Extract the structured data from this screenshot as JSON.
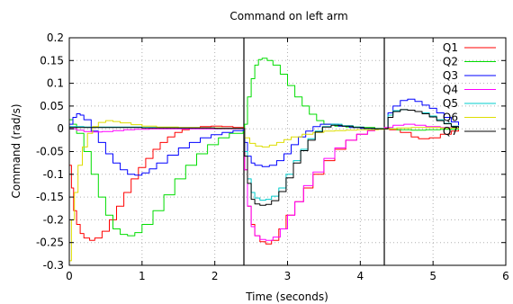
{
  "chart_data": {
    "type": "line",
    "title": "Command on left arm",
    "xlabel": "Time (seconds)",
    "ylabel": "Command (rad/s)",
    "xlim": [
      0,
      6
    ],
    "ylim": [
      -0.3,
      0.2
    ],
    "xticks": [
      0,
      1,
      2,
      3,
      4,
      5,
      6
    ],
    "yticks": [
      -0.3,
      -0.25,
      -0.2,
      -0.15,
      -0.1,
      -0.05,
      0,
      0.05,
      0.1,
      0.15,
      0.2
    ],
    "ytick_labels": [
      "-0.3",
      "-0.25",
      "-0.2",
      "-0.15",
      "-0.1",
      "-0.05",
      "0",
      "0.05",
      "0.1",
      "0.15",
      "0.2"
    ],
    "grid": true,
    "legend_position": "top-right",
    "vertical_markers": [
      2.4,
      4.33
    ],
    "series": [
      {
        "name": "Q1",
        "color": "#ff0000",
        "points": [
          [
            0,
            -0.08
          ],
          [
            0.03,
            -0.13
          ],
          [
            0.06,
            -0.18
          ],
          [
            0.1,
            -0.21
          ],
          [
            0.15,
            -0.23
          ],
          [
            0.2,
            -0.24
          ],
          [
            0.28,
            -0.245
          ],
          [
            0.35,
            -0.24
          ],
          [
            0.45,
            -0.225
          ],
          [
            0.55,
            -0.2
          ],
          [
            0.65,
            -0.17
          ],
          [
            0.75,
            -0.14
          ],
          [
            0.85,
            -0.11
          ],
          [
            0.95,
            -0.085
          ],
          [
            1.05,
            -0.065
          ],
          [
            1.15,
            -0.045
          ],
          [
            1.25,
            -0.03
          ],
          [
            1.35,
            -0.018
          ],
          [
            1.45,
            -0.008
          ],
          [
            1.55,
            -0.002
          ],
          [
            1.65,
            0.002
          ],
          [
            1.8,
            0.005
          ],
          [
            1.95,
            0.006
          ],
          [
            2.1,
            0.005
          ],
          [
            2.25,
            0.003
          ],
          [
            2.39,
            0.002
          ],
          [
            2.41,
            -0.09
          ],
          [
            2.45,
            -0.17
          ],
          [
            2.5,
            -0.21
          ],
          [
            2.55,
            -0.235
          ],
          [
            2.62,
            -0.248
          ],
          [
            2.7,
            -0.253
          ],
          [
            2.78,
            -0.245
          ],
          [
            2.88,
            -0.22
          ],
          [
            2.98,
            -0.19
          ],
          [
            3.1,
            -0.16
          ],
          [
            3.22,
            -0.13
          ],
          [
            3.35,
            -0.1
          ],
          [
            3.5,
            -0.07
          ],
          [
            3.65,
            -0.045
          ],
          [
            3.8,
            -0.025
          ],
          [
            3.95,
            -0.012
          ],
          [
            4.1,
            -0.004
          ],
          [
            4.2,
            0
          ],
          [
            4.33,
            0.002
          ],
          [
            4.4,
            -0.002
          ],
          [
            4.55,
            -0.008
          ],
          [
            4.7,
            -0.018
          ],
          [
            4.8,
            -0.022
          ],
          [
            4.95,
            -0.02
          ],
          [
            5.1,
            -0.012
          ],
          [
            5.25,
            -0.005
          ],
          [
            5.35,
            -0.002
          ]
        ]
      },
      {
        "name": "Q2",
        "color": "#00dd00",
        "points": [
          [
            0,
            0.02
          ],
          [
            0.05,
            0.01
          ],
          [
            0.1,
            -0.01
          ],
          [
            0.2,
            -0.05
          ],
          [
            0.3,
            -0.1
          ],
          [
            0.4,
            -0.15
          ],
          [
            0.5,
            -0.19
          ],
          [
            0.6,
            -0.22
          ],
          [
            0.7,
            -0.232
          ],
          [
            0.8,
            -0.235
          ],
          [
            0.9,
            -0.228
          ],
          [
            1.0,
            -0.21
          ],
          [
            1.15,
            -0.18
          ],
          [
            1.3,
            -0.145
          ],
          [
            1.45,
            -0.11
          ],
          [
            1.6,
            -0.08
          ],
          [
            1.75,
            -0.055
          ],
          [
            1.9,
            -0.035
          ],
          [
            2.05,
            -0.02
          ],
          [
            2.2,
            -0.01
          ],
          [
            2.39,
            -0.005
          ],
          [
            2.41,
            0.01
          ],
          [
            2.45,
            0.07
          ],
          [
            2.5,
            0.11
          ],
          [
            2.55,
            0.14
          ],
          [
            2.6,
            0.152
          ],
          [
            2.65,
            0.155
          ],
          [
            2.72,
            0.15
          ],
          [
            2.8,
            0.14
          ],
          [
            2.9,
            0.12
          ],
          [
            3.0,
            0.095
          ],
          [
            3.1,
            0.07
          ],
          [
            3.2,
            0.05
          ],
          [
            3.3,
            0.032
          ],
          [
            3.4,
            0.018
          ],
          [
            3.5,
            0.01
          ],
          [
            3.65,
            0.006
          ],
          [
            3.8,
            0.004
          ],
          [
            4.0,
            0.003
          ],
          [
            4.2,
            0.001
          ],
          [
            4.33,
            0
          ],
          [
            4.5,
            -0.002
          ],
          [
            4.7,
            -0.003
          ],
          [
            4.9,
            -0.002
          ],
          [
            5.1,
            -0.001
          ],
          [
            5.35,
            0
          ]
        ]
      },
      {
        "name": "Q3",
        "color": "#0000ff",
        "points": [
          [
            0,
            0.01
          ],
          [
            0.05,
            0.025
          ],
          [
            0.1,
            0.033
          ],
          [
            0.15,
            0.03
          ],
          [
            0.2,
            0.02
          ],
          [
            0.3,
            -0.005
          ],
          [
            0.4,
            -0.03
          ],
          [
            0.5,
            -0.055
          ],
          [
            0.6,
            -0.075
          ],
          [
            0.7,
            -0.09
          ],
          [
            0.8,
            -0.1
          ],
          [
            0.9,
            -0.102
          ],
          [
            1.0,
            -0.097
          ],
          [
            1.1,
            -0.088
          ],
          [
            1.2,
            -0.075
          ],
          [
            1.35,
            -0.058
          ],
          [
            1.5,
            -0.042
          ],
          [
            1.65,
            -0.03
          ],
          [
            1.8,
            -0.02
          ],
          [
            1.95,
            -0.013
          ],
          [
            2.1,
            -0.008
          ],
          [
            2.25,
            -0.004
          ],
          [
            2.39,
            -0.002
          ],
          [
            2.41,
            -0.03
          ],
          [
            2.45,
            -0.06
          ],
          [
            2.5,
            -0.075
          ],
          [
            2.55,
            -0.08
          ],
          [
            2.65,
            -0.083
          ],
          [
            2.75,
            -0.08
          ],
          [
            2.85,
            -0.07
          ],
          [
            2.95,
            -0.055
          ],
          [
            3.05,
            -0.035
          ],
          [
            3.15,
            -0.018
          ],
          [
            3.25,
            -0.005
          ],
          [
            3.35,
            0.005
          ],
          [
            3.45,
            0.01
          ],
          [
            3.55,
            0.01
          ],
          [
            3.7,
            0.006
          ],
          [
            3.85,
            0.003
          ],
          [
            4.0,
            0.001
          ],
          [
            4.15,
            0
          ],
          [
            4.33,
            0
          ],
          [
            4.38,
            0.035
          ],
          [
            4.45,
            0.05
          ],
          [
            4.55,
            0.062
          ],
          [
            4.65,
            0.065
          ],
          [
            4.75,
            0.06
          ],
          [
            4.85,
            0.052
          ],
          [
            4.95,
            0.045
          ],
          [
            5.05,
            0.035
          ],
          [
            5.15,
            0.025
          ],
          [
            5.25,
            0.015
          ],
          [
            5.35,
            0.008
          ]
        ]
      },
      {
        "name": "Q4",
        "color": "#ff00ff",
        "points": [
          [
            0,
            0.0
          ],
          [
            0.1,
            -0.003
          ],
          [
            0.2,
            -0.006
          ],
          [
            0.3,
            -0.007
          ],
          [
            0.45,
            -0.006
          ],
          [
            0.6,
            -0.004
          ],
          [
            0.75,
            -0.002
          ],
          [
            0.9,
            -0.001
          ],
          [
            1.1,
            0
          ],
          [
            1.4,
            0
          ],
          [
            1.8,
            0
          ],
          [
            2.2,
            0
          ],
          [
            2.39,
            0
          ],
          [
            2.41,
            -0.09
          ],
          [
            2.45,
            -0.17
          ],
          [
            2.5,
            -0.215
          ],
          [
            2.55,
            -0.235
          ],
          [
            2.62,
            -0.243
          ],
          [
            2.7,
            -0.245
          ],
          [
            2.8,
            -0.238
          ],
          [
            2.9,
            -0.22
          ],
          [
            3.0,
            -0.19
          ],
          [
            3.1,
            -0.16
          ],
          [
            3.22,
            -0.125
          ],
          [
            3.35,
            -0.095
          ],
          [
            3.5,
            -0.065
          ],
          [
            3.65,
            -0.042
          ],
          [
            3.8,
            -0.025
          ],
          [
            3.95,
            -0.012
          ],
          [
            4.1,
            -0.004
          ],
          [
            4.2,
            0
          ],
          [
            4.33,
            0.003
          ],
          [
            4.45,
            0.008
          ],
          [
            4.6,
            0.01
          ],
          [
            4.75,
            0.008
          ],
          [
            4.9,
            0.005
          ],
          [
            5.1,
            0.003
          ],
          [
            5.35,
            0.002
          ]
        ]
      },
      {
        "name": "Q5",
        "color": "#00cccc",
        "points": [
          [
            0,
            0.005
          ],
          [
            0.2,
            0.004
          ],
          [
            0.5,
            0.004
          ],
          [
            1.0,
            0.003
          ],
          [
            1.5,
            0.002
          ],
          [
            2.0,
            0.001
          ],
          [
            2.39,
            0.001
          ],
          [
            2.41,
            -0.05
          ],
          [
            2.45,
            -0.11
          ],
          [
            2.5,
            -0.14
          ],
          [
            2.55,
            -0.152
          ],
          [
            2.62,
            -0.157
          ],
          [
            2.7,
            -0.155
          ],
          [
            2.78,
            -0.148
          ],
          [
            2.88,
            -0.13
          ],
          [
            2.98,
            -0.1
          ],
          [
            3.08,
            -0.07
          ],
          [
            3.18,
            -0.045
          ],
          [
            3.28,
            -0.022
          ],
          [
            3.38,
            -0.005
          ],
          [
            3.48,
            0.005
          ],
          [
            3.6,
            0.01
          ],
          [
            3.75,
            0.007
          ],
          [
            3.9,
            0.004
          ],
          [
            4.05,
            0.001
          ],
          [
            4.2,
            0
          ],
          [
            4.33,
            0
          ],
          [
            4.38,
            0.03
          ],
          [
            4.45,
            0.04
          ],
          [
            4.55,
            0.042
          ],
          [
            4.65,
            0.041
          ],
          [
            4.75,
            0.038
          ],
          [
            4.85,
            0.035
          ],
          [
            4.95,
            0.028
          ],
          [
            5.05,
            0.02
          ],
          [
            5.15,
            0.012
          ],
          [
            5.25,
            0.006
          ],
          [
            5.35,
            0.003
          ]
        ]
      },
      {
        "name": "Q6",
        "color": "#dddd00",
        "points": [
          [
            0,
            -0.29
          ],
          [
            0.03,
            -0.2
          ],
          [
            0.07,
            -0.14
          ],
          [
            0.12,
            -0.08
          ],
          [
            0.18,
            -0.04
          ],
          [
            0.25,
            -0.01
          ],
          [
            0.32,
            0.005
          ],
          [
            0.4,
            0.014
          ],
          [
            0.5,
            0.018
          ],
          [
            0.6,
            0.016
          ],
          [
            0.7,
            0.013
          ],
          [
            0.85,
            0.009
          ],
          [
            1.0,
            0.006
          ],
          [
            1.2,
            0.004
          ],
          [
            1.5,
            0.003
          ],
          [
            1.8,
            0.002
          ],
          [
            2.1,
            0.001
          ],
          [
            2.39,
            0.001
          ],
          [
            2.41,
            -0.02
          ],
          [
            2.48,
            -0.032
          ],
          [
            2.56,
            -0.038
          ],
          [
            2.65,
            -0.04
          ],
          [
            2.75,
            -0.036
          ],
          [
            2.85,
            -0.03
          ],
          [
            2.95,
            -0.024
          ],
          [
            3.05,
            -0.018
          ],
          [
            3.2,
            -0.012
          ],
          [
            3.35,
            -0.008
          ],
          [
            3.5,
            -0.005
          ],
          [
            3.65,
            -0.004
          ],
          [
            3.8,
            -0.003
          ],
          [
            3.95,
            -0.002
          ],
          [
            4.1,
            -0.002
          ],
          [
            4.25,
            -0.001
          ],
          [
            4.33,
            0
          ],
          [
            4.5,
            0.002
          ],
          [
            4.7,
            0.003
          ],
          [
            4.9,
            0.003
          ],
          [
            5.1,
            0.002
          ],
          [
            5.35,
            0.001
          ]
        ]
      },
      {
        "name": "Q7",
        "color": "#000000",
        "points": [
          [
            0,
            0.003
          ],
          [
            0.3,
            0.003
          ],
          [
            0.6,
            0.003
          ],
          [
            1.0,
            0.002
          ],
          [
            1.5,
            0.002
          ],
          [
            2.0,
            0.001
          ],
          [
            2.39,
            0.001
          ],
          [
            2.41,
            -0.06
          ],
          [
            2.45,
            -0.12
          ],
          [
            2.5,
            -0.155
          ],
          [
            2.55,
            -0.165
          ],
          [
            2.62,
            -0.168
          ],
          [
            2.7,
            -0.166
          ],
          [
            2.78,
            -0.158
          ],
          [
            2.88,
            -0.138
          ],
          [
            2.98,
            -0.108
          ],
          [
            3.08,
            -0.075
          ],
          [
            3.18,
            -0.048
          ],
          [
            3.28,
            -0.025
          ],
          [
            3.38,
            -0.007
          ],
          [
            3.48,
            0.004
          ],
          [
            3.6,
            0.008
          ],
          [
            3.75,
            0.006
          ],
          [
            3.9,
            0.003
          ],
          [
            4.05,
            0.001
          ],
          [
            4.2,
            0
          ],
          [
            4.33,
            0
          ],
          [
            4.38,
            0.025
          ],
          [
            4.45,
            0.038
          ],
          [
            4.55,
            0.042
          ],
          [
            4.65,
            0.041
          ],
          [
            4.75,
            0.038
          ],
          [
            4.85,
            0.033
          ],
          [
            4.95,
            0.026
          ],
          [
            5.05,
            0.018
          ],
          [
            5.15,
            0.011
          ],
          [
            5.25,
            0.005
          ],
          [
            5.35,
            0.002
          ]
        ]
      }
    ]
  }
}
